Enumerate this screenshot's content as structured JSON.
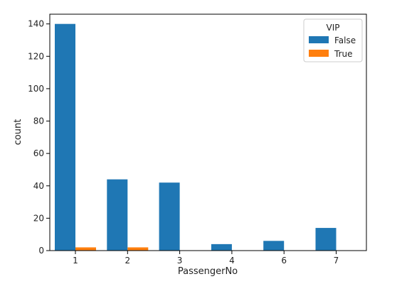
{
  "chart_data": {
    "type": "bar",
    "categories": [
      "1",
      "2",
      "3",
      "4",
      "6",
      "7"
    ],
    "series": [
      {
        "name": "False",
        "values": [
          140,
          44,
          42,
          4,
          6,
          14
        ],
        "color": "#1f77b4"
      },
      {
        "name": "True",
        "values": [
          2,
          2,
          0,
          0,
          0,
          0
        ],
        "color": "#ff7f0e"
      }
    ],
    "xlabel": "PassengerNo",
    "ylabel": "count",
    "ylim": [
      0,
      146
    ],
    "yticks": [
      0,
      20,
      40,
      60,
      80,
      100,
      120,
      140
    ],
    "legend": {
      "title": "VIP",
      "placement": "top-right"
    },
    "grid": false
  }
}
